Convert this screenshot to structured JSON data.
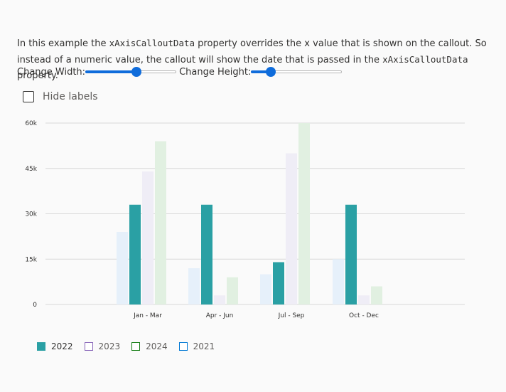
{
  "description": {
    "part1": "In this example the ",
    "code1": "xAxisCalloutData",
    "part2": " property overrides the x value that is shown on the callout. So instead of a numeric value, the callout will show the date that is passed in the ",
    "code2": "xAxisCalloutData",
    "part3": " property."
  },
  "controls": {
    "width_label": "Change Width:",
    "width_value": 0.56,
    "height_label": "Change Height:",
    "height_value": 0.22
  },
  "hide_labels": {
    "label": "Hide labels",
    "checked": false
  },
  "colors": {
    "2022": "#2aa0a4",
    "2023": "#efedf6",
    "2024": "#e1f0e1",
    "2021": "#e6f0fa",
    "legend_2023_border": "#8764b8",
    "legend_2024_border": "#107c10",
    "legend_2021_border": "#0078d4",
    "gridline": "#d8d8d8"
  },
  "chart_data": {
    "type": "bar",
    "categories": [
      "Jan - Mar",
      "Apr - Jun",
      "Jul - Sep",
      "Oct - Dec"
    ],
    "series": [
      {
        "name": "2021",
        "values": [
          24000,
          12000,
          10000,
          15000
        ]
      },
      {
        "name": "2022",
        "values": [
          33000,
          33000,
          14000,
          33000
        ]
      },
      {
        "name": "2023",
        "values": [
          44000,
          3000,
          50000,
          3000
        ]
      },
      {
        "name": "2024",
        "values": [
          54000,
          9000,
          60000,
          6000
        ]
      }
    ],
    "yticks": [
      0,
      15000,
      30000,
      45000,
      60000
    ],
    "ytick_labels": [
      "0",
      "15k",
      "30k",
      "45k",
      "60k"
    ],
    "ylim": [
      0,
      60000
    ],
    "grid": true,
    "legend": [
      "2022",
      "2023",
      "2024",
      "2021"
    ],
    "legend_placement": "bottom-left"
  }
}
